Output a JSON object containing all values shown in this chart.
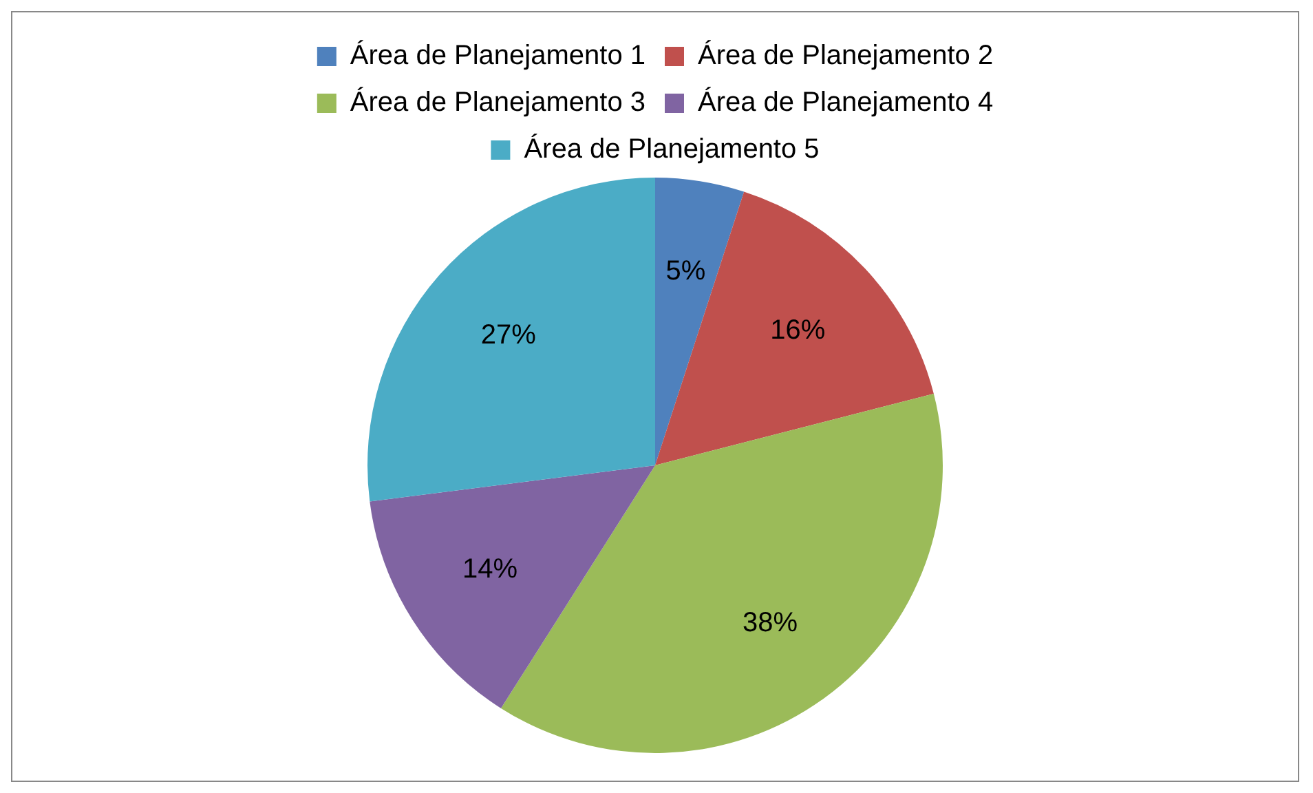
{
  "chart_data": {
    "type": "pie",
    "categories": [
      "Área de Planejamento 1",
      "Área de Planejamento 2",
      "Área de Planejamento 3",
      "Área de Planejamento 4",
      "Área de Planejamento 5"
    ],
    "values": [
      5,
      16,
      38,
      14,
      27
    ],
    "colors": [
      "#4f81bd",
      "#c0504d",
      "#9bbb59",
      "#8064a2",
      "#4bacc6"
    ],
    "value_labels": [
      "5%",
      "16%",
      "38%",
      "14%",
      "27%"
    ],
    "legend": "top"
  }
}
